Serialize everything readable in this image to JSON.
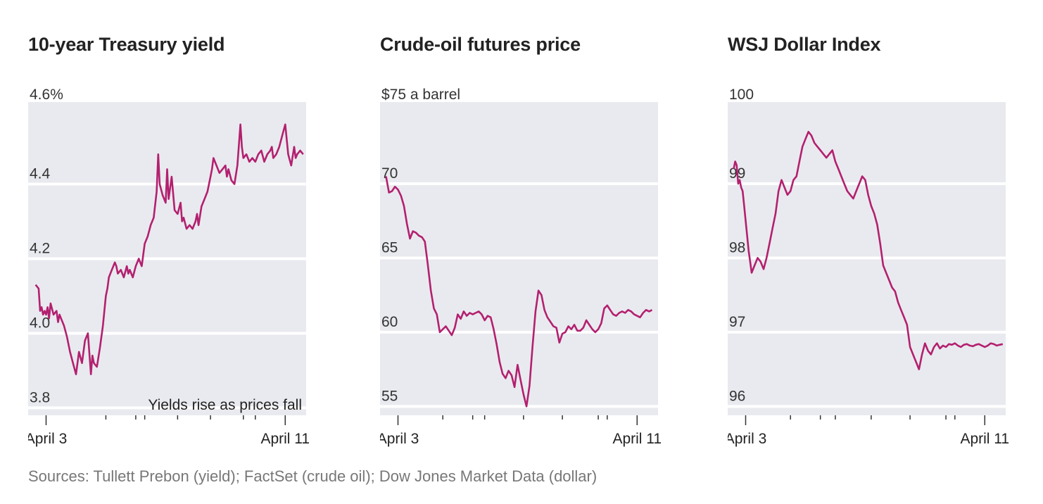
{
  "chart_data": [
    {
      "type": "line",
      "title": "10-year Treasury yield",
      "y_tick_labels": [
        "4.6%",
        "4.4",
        "4.2",
        "4.0",
        "3.8"
      ],
      "y_ticks": [
        4.6,
        4.4,
        4.2,
        4.0,
        3.8
      ],
      "ylim": [
        3.78,
        4.62
      ],
      "x_range": [
        -0.6,
        8.7
      ],
      "x_labels": [
        {
          "label": "April 3",
          "x": 0
        },
        {
          "label": "April 11",
          "x": 8
        }
      ],
      "x_minor_ticks": [
        2,
        3,
        3.3,
        4.4,
        5.5,
        6.6,
        7
      ],
      "annotation": "Yields rise as prices fall",
      "color": "#b3206f",
      "series": [
        {
          "name": "Yield",
          "x": [
            -0.35,
            -0.25,
            -0.2,
            -0.15,
            -0.1,
            -0.05,
            0.0,
            0.05,
            0.1,
            0.15,
            0.25,
            0.35,
            0.4,
            0.45,
            0.5,
            0.6,
            0.7,
            0.8,
            0.9,
            1.0,
            1.05,
            1.1,
            1.2,
            1.3,
            1.4,
            1.5,
            1.55,
            1.6,
            1.7,
            1.8,
            1.9,
            2.0,
            2.05,
            2.1,
            2.2,
            2.3,
            2.35,
            2.4,
            2.5,
            2.6,
            2.7,
            2.75,
            2.8,
            2.9,
            3.0,
            3.1,
            3.2,
            3.3,
            3.4,
            3.5,
            3.6,
            3.7,
            3.75,
            3.8,
            3.9,
            4.0,
            4.05,
            4.1,
            4.2,
            4.3,
            4.4,
            4.5,
            4.55,
            4.6,
            4.7,
            4.8,
            4.9,
            5.0,
            5.05,
            5.1,
            5.2,
            5.3,
            5.4,
            5.5,
            5.55,
            5.6,
            5.7,
            5.8,
            5.9,
            6.0,
            6.05,
            6.1,
            6.2,
            6.3,
            6.4,
            6.5,
            6.55,
            6.6,
            6.7,
            6.8,
            6.9,
            7.0,
            7.05,
            7.1,
            7.2,
            7.3,
            7.4,
            7.5,
            7.55,
            7.6,
            7.7,
            7.8,
            7.9,
            8.0,
            8.05,
            8.1,
            8.2,
            8.3,
            8.35,
            8.4,
            8.5,
            8.6
          ],
          "values": [
            4.13,
            4.12,
            4.06,
            4.07,
            4.05,
            4.06,
            4.05,
            4.07,
            4.04,
            4.08,
            4.05,
            4.06,
            4.03,
            4.05,
            4.04,
            4.02,
            3.99,
            3.95,
            3.92,
            3.89,
            3.92,
            3.95,
            3.92,
            3.98,
            4.0,
            3.89,
            3.94,
            3.92,
            3.91,
            3.96,
            4.02,
            4.1,
            4.12,
            4.15,
            4.17,
            4.19,
            4.18,
            4.16,
            4.17,
            4.15,
            4.18,
            4.16,
            4.17,
            4.15,
            4.18,
            4.2,
            4.18,
            4.24,
            4.26,
            4.29,
            4.31,
            4.38,
            4.48,
            4.4,
            4.37,
            4.35,
            4.44,
            4.36,
            4.42,
            4.33,
            4.32,
            4.35,
            4.3,
            4.31,
            4.28,
            4.29,
            4.28,
            4.3,
            4.32,
            4.29,
            4.34,
            4.36,
            4.38,
            4.42,
            4.44,
            4.47,
            4.45,
            4.43,
            4.44,
            4.45,
            4.42,
            4.44,
            4.41,
            4.4,
            4.45,
            4.56,
            4.5,
            4.47,
            4.48,
            4.46,
            4.47,
            4.46,
            4.47,
            4.48,
            4.49,
            4.46,
            4.48,
            4.49,
            4.5,
            4.47,
            4.48,
            4.5,
            4.53,
            4.56,
            4.52,
            4.48,
            4.45,
            4.5,
            4.47,
            4.48,
            4.49,
            4.48
          ]
        }
      ]
    },
    {
      "type": "line",
      "title": "Crude-oil futures price",
      "y_tick_labels": [
        "$75 a barrel",
        "70",
        "65",
        "60",
        "55"
      ],
      "y_ticks": [
        75,
        70,
        65,
        60,
        55
      ],
      "ylim": [
        54.4,
        75.5
      ],
      "x_range": [
        -0.6,
        8.7
      ],
      "x_labels": [
        {
          "label": "April 3",
          "x": 0
        },
        {
          "label": "April 11",
          "x": 8
        }
      ],
      "x_minor_ticks": [
        1.5,
        2.5,
        2.9,
        4.2,
        5.5,
        6.7,
        7
      ],
      "color": "#b3206f",
      "series": [
        {
          "name": "Price",
          "x": [
            -0.4,
            -0.3,
            -0.2,
            -0.1,
            0.0,
            0.1,
            0.2,
            0.3,
            0.4,
            0.5,
            0.6,
            0.7,
            0.8,
            0.9,
            1.0,
            1.1,
            1.2,
            1.3,
            1.4,
            1.5,
            1.6,
            1.7,
            1.8,
            1.9,
            2.0,
            2.1,
            2.2,
            2.3,
            2.4,
            2.5,
            2.6,
            2.7,
            2.8,
            2.9,
            3.0,
            3.1,
            3.2,
            3.3,
            3.4,
            3.5,
            3.6,
            3.7,
            3.8,
            3.9,
            4.0,
            4.1,
            4.2,
            4.3,
            4.4,
            4.5,
            4.6,
            4.7,
            4.8,
            4.9,
            5.0,
            5.1,
            5.2,
            5.3,
            5.4,
            5.5,
            5.6,
            5.7,
            5.8,
            5.9,
            6.0,
            6.1,
            6.2,
            6.3,
            6.4,
            6.5,
            6.6,
            6.7,
            6.8,
            6.9,
            7.0,
            7.1,
            7.2,
            7.3,
            7.4,
            7.5,
            7.6,
            7.7,
            7.8,
            7.9,
            8.0,
            8.1,
            8.2,
            8.3,
            8.4,
            8.5
          ],
          "values": [
            70.5,
            69.4,
            69.5,
            69.8,
            69.6,
            69.2,
            68.5,
            67.3,
            66.3,
            66.8,
            66.7,
            66.5,
            66.4,
            66.1,
            64.5,
            62.8,
            61.6,
            61.2,
            60.0,
            60.2,
            60.4,
            60.1,
            59.8,
            60.3,
            61.2,
            60.9,
            61.4,
            61.1,
            61.3,
            61.2,
            61.3,
            61.4,
            61.2,
            60.8,
            61.1,
            61.0,
            60.2,
            59.2,
            58.0,
            57.2,
            56.9,
            57.4,
            57.1,
            56.3,
            57.8,
            56.8,
            55.8,
            55.0,
            56.4,
            59.0,
            61.4,
            62.8,
            62.5,
            61.5,
            61.0,
            60.7,
            60.4,
            60.3,
            59.3,
            59.9,
            60.0,
            60.4,
            60.2,
            60.5,
            60.1,
            60.1,
            60.3,
            60.8,
            60.5,
            60.2,
            60.0,
            60.2,
            60.6,
            61.6,
            61.8,
            61.5,
            61.2,
            61.1,
            61.3,
            61.4,
            61.3,
            61.5,
            61.4,
            61.2,
            61.1,
            61.0,
            61.3,
            61.5,
            61.4,
            61.5
          ]
        }
      ]
    },
    {
      "type": "line",
      "title": "WSJ Dollar Index",
      "y_tick_labels": [
        "100",
        "99",
        "98",
        "97",
        "96"
      ],
      "y_ticks": [
        100,
        99,
        98,
        97,
        96
      ],
      "ylim": [
        95.88,
        100.1
      ],
      "x_range": [
        -0.6,
        8.7
      ],
      "x_labels": [
        {
          "label": "April 3",
          "x": 0
        },
        {
          "label": "April 11",
          "x": 8
        }
      ],
      "x_minor_ticks": [
        1.5,
        2.5,
        3.0,
        4.2,
        5.5,
        6.7,
        7
      ],
      "color": "#b3206f",
      "series": [
        {
          "name": "Index",
          "x": [
            -0.4,
            -0.35,
            -0.3,
            -0.25,
            -0.2,
            -0.15,
            -0.1,
            -0.05,
            0.0,
            0.05,
            0.1,
            0.15,
            0.2,
            0.3,
            0.4,
            0.5,
            0.6,
            0.7,
            0.8,
            0.9,
            1.0,
            1.1,
            1.2,
            1.3,
            1.4,
            1.5,
            1.6,
            1.7,
            1.8,
            1.9,
            2.0,
            2.1,
            2.2,
            2.3,
            2.4,
            2.5,
            2.6,
            2.7,
            2.8,
            2.9,
            3.0,
            3.1,
            3.2,
            3.3,
            3.4,
            3.5,
            3.6,
            3.7,
            3.8,
            3.9,
            4.0,
            4.1,
            4.2,
            4.3,
            4.4,
            4.5,
            4.6,
            4.7,
            4.8,
            4.9,
            5.0,
            5.1,
            5.2,
            5.3,
            5.4,
            5.5,
            5.6,
            5.7,
            5.8,
            5.9,
            6.0,
            6.1,
            6.2,
            6.3,
            6.4,
            6.5,
            6.6,
            6.7,
            6.8,
            6.9,
            7.0,
            7.1,
            7.2,
            7.3,
            7.4,
            7.5,
            7.6,
            7.7,
            7.8,
            7.9,
            8.0,
            8.1,
            8.2,
            8.3,
            8.4,
            8.5,
            8.6
          ],
          "values": [
            99.2,
            99.3,
            99.25,
            99.0,
            99.05,
            98.95,
            98.9,
            98.7,
            98.5,
            98.3,
            98.1,
            97.95,
            97.8,
            97.9,
            98.0,
            97.95,
            97.85,
            98.0,
            98.2,
            98.4,
            98.6,
            98.9,
            99.05,
            98.95,
            98.85,
            98.9,
            99.05,
            99.1,
            99.3,
            99.5,
            99.6,
            99.7,
            99.65,
            99.55,
            99.5,
            99.45,
            99.4,
            99.35,
            99.4,
            99.45,
            99.3,
            99.2,
            99.1,
            99.0,
            98.9,
            98.85,
            98.8,
            98.9,
            99.0,
            99.1,
            99.05,
            98.85,
            98.7,
            98.6,
            98.45,
            98.2,
            97.9,
            97.8,
            97.7,
            97.6,
            97.55,
            97.4,
            97.3,
            97.2,
            97.1,
            96.8,
            96.7,
            96.6,
            96.5,
            96.7,
            96.85,
            96.75,
            96.7,
            96.8,
            96.85,
            96.78,
            96.82,
            96.8,
            96.84,
            96.83,
            96.85,
            96.82,
            96.8,
            96.83,
            96.84,
            96.82,
            96.81,
            96.83,
            96.84,
            96.82,
            96.8,
            96.82,
            96.85,
            96.84,
            96.82,
            96.83,
            96.84
          ]
        }
      ]
    }
  ],
  "footer": {
    "source": "Sources: Tullett Prebon (yield); FactSet (crude oil); Dow Jones Market Data (dollar)"
  }
}
